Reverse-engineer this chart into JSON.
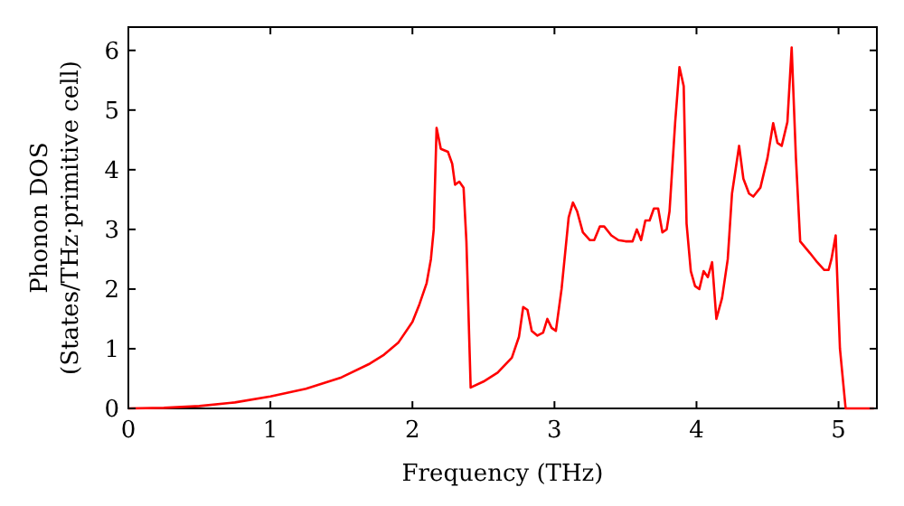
{
  "chart_data": {
    "type": "line",
    "xlabel": "Frequency (THz)",
    "ylabel": "Phonon DOS\n(States/THz·primitive cell)",
    "xlim": [
      0,
      5.27
    ],
    "ylim": [
      0,
      6.39
    ],
    "xticks": [
      0,
      1,
      2,
      3,
      4,
      5
    ],
    "yticks": [
      0,
      1,
      2,
      3,
      4,
      5,
      6
    ],
    "grid": false,
    "marker": "none",
    "line_style": "solid",
    "series": [
      {
        "color": "#ff0000",
        "x": [
          0,
          0.25,
          0.5,
          0.75,
          1.0,
          1.25,
          1.5,
          1.7,
          1.8,
          1.9,
          2.0,
          2.05,
          2.1,
          2.13,
          2.15,
          2.17,
          2.2,
          2.25,
          2.28,
          2.3,
          2.33,
          2.36,
          2.38,
          2.41,
          2.5,
          2.6,
          2.7,
          2.75,
          2.78,
          2.81,
          2.84,
          2.88,
          2.92,
          2.95,
          2.98,
          3.01,
          3.05,
          3.1,
          3.13,
          3.16,
          3.2,
          3.25,
          3.28,
          3.32,
          3.35,
          3.4,
          3.45,
          3.5,
          3.55,
          3.58,
          3.61,
          3.64,
          3.67,
          3.7,
          3.73,
          3.76,
          3.79,
          3.81,
          3.85,
          3.88,
          3.91,
          3.93,
          3.96,
          3.99,
          4.02,
          4.05,
          4.08,
          4.11,
          4.14,
          4.18,
          4.22,
          4.25,
          4.3,
          4.33,
          4.37,
          4.4,
          4.45,
          4.5,
          4.54,
          4.57,
          4.6,
          4.64,
          4.67,
          4.7,
          4.73,
          4.8,
          4.85,
          4.9,
          4.93,
          4.95,
          4.98,
          5.01,
          5.05,
          5.25
        ],
        "values": [
          0,
          0.01,
          0.04,
          0.1,
          0.2,
          0.33,
          0.52,
          0.75,
          0.9,
          1.1,
          1.45,
          1.75,
          2.1,
          2.5,
          3.0,
          4.7,
          4.35,
          4.3,
          4.1,
          3.75,
          3.8,
          3.7,
          2.8,
          0.35,
          0.45,
          0.6,
          0.85,
          1.2,
          1.7,
          1.65,
          1.3,
          1.22,
          1.27,
          1.5,
          1.35,
          1.3,
          2.0,
          3.2,
          3.45,
          3.3,
          2.95,
          2.82,
          2.82,
          3.05,
          3.05,
          2.9,
          2.82,
          2.8,
          2.8,
          3.0,
          2.82,
          3.15,
          3.15,
          3.35,
          3.35,
          2.95,
          3.0,
          3.3,
          4.8,
          5.72,
          5.4,
          3.1,
          2.3,
          2.05,
          2.0,
          2.3,
          2.2,
          2.45,
          1.5,
          1.85,
          2.5,
          3.6,
          4.4,
          3.85,
          3.6,
          3.55,
          3.7,
          4.2,
          4.78,
          4.45,
          4.4,
          4.8,
          6.05,
          4.2,
          2.8,
          2.6,
          2.45,
          2.32,
          2.32,
          2.5,
          2.9,
          1.0,
          0,
          0
        ]
      }
    ]
  }
}
